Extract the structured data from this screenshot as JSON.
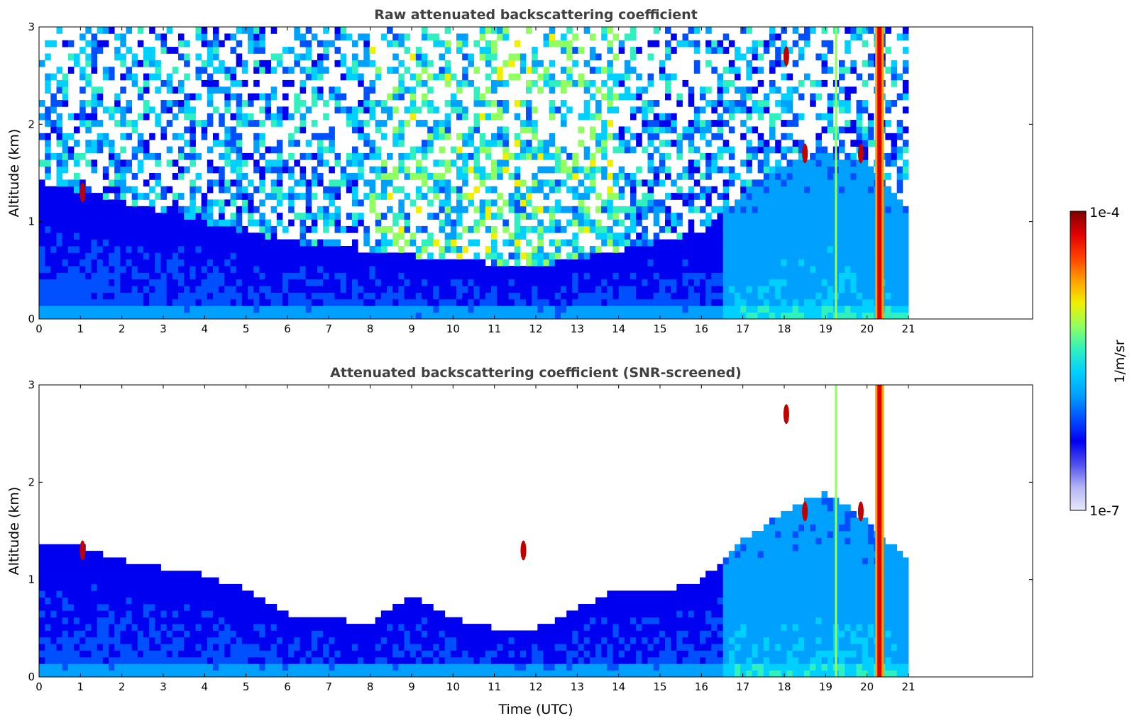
{
  "chart_data": [
    {
      "type": "heatmap",
      "title": "Raw attenuated backscattering coefficient",
      "xlabel": "",
      "ylabel": "Altitude (km)",
      "xlim": [
        0,
        24
      ],
      "ylim": [
        0,
        3
      ],
      "xticks": [
        "0",
        "1",
        "2",
        "3",
        "4",
        "5",
        "6",
        "7",
        "8",
        "9",
        "10",
        "11",
        "12",
        "13",
        "14",
        "15",
        "16",
        "17",
        "18",
        "19",
        "20",
        "21"
      ],
      "yticks": [
        "0",
        "1",
        "2",
        "3"
      ],
      "data_end_hour": 21,
      "features": [
        {
          "name": "boundary layer",
          "kind": "layer",
          "top_km": [
            [
              0,
              1.4
            ],
            [
              2,
              1.2
            ],
            [
              4,
              1.0
            ],
            [
              6,
              0.8
            ],
            [
              8,
              0.7
            ],
            [
              10,
              0.6
            ],
            [
              12,
              0.55
            ],
            [
              14,
              0.7
            ],
            [
              16,
              0.9
            ],
            [
              17,
              1.3
            ],
            [
              18,
              1.6
            ],
            [
              19,
              1.7
            ],
            [
              20,
              1.6
            ],
            [
              21,
              1.1
            ]
          ]
        },
        {
          "name": "cloud",
          "kind": "spot",
          "x_hour": 1.05,
          "alt_km": 1.3
        },
        {
          "name": "cloud",
          "kind": "spot",
          "x_hour": 18.05,
          "alt_km": 2.7
        },
        {
          "name": "cloud",
          "kind": "spot",
          "x_hour": 18.5,
          "alt_km": 1.7
        },
        {
          "name": "cloud",
          "kind": "spot",
          "x_hour": 19.85,
          "alt_km": 1.7
        },
        {
          "name": "precipitation",
          "kind": "column",
          "x_hour": 19.25
        },
        {
          "name": "precipitation",
          "kind": "column",
          "x_hour": 20.3
        }
      ]
    },
    {
      "type": "heatmap",
      "title": "Attenuated backscattering coefficient (SNR-screened)",
      "xlabel": "Time (UTC)",
      "ylabel": "Altitude (km)",
      "xlim": [
        0,
        24
      ],
      "ylim": [
        0,
        3
      ],
      "xticks": [
        "0",
        "1",
        "2",
        "3",
        "4",
        "5",
        "6",
        "7",
        "8",
        "9",
        "10",
        "11",
        "12",
        "13",
        "14",
        "15",
        "16",
        "17",
        "18",
        "19",
        "20",
        "21"
      ],
      "yticks": [
        "0",
        "1",
        "2",
        "3"
      ],
      "data_end_hour": 21,
      "features": [
        {
          "name": "boundary layer",
          "kind": "layer",
          "top_km": [
            [
              0,
              1.4
            ],
            [
              1,
              1.35
            ],
            [
              2,
              1.2
            ],
            [
              4,
              1.05
            ],
            [
              5,
              0.9
            ],
            [
              6,
              0.65
            ],
            [
              7,
              0.6
            ],
            [
              8,
              0.55
            ],
            [
              9,
              0.85
            ],
            [
              10,
              0.6
            ],
            [
              11,
              0.5
            ],
            [
              12,
              0.5
            ],
            [
              13,
              0.7
            ],
            [
              14,
              0.9
            ],
            [
              15,
              0.85
            ],
            [
              16,
              1.0
            ],
            [
              17,
              1.4
            ],
            [
              18,
              1.7
            ],
            [
              19,
              1.9
            ],
            [
              20,
              1.6
            ],
            [
              21,
              1.2
            ]
          ]
        },
        {
          "name": "cloud",
          "kind": "spot",
          "x_hour": 1.05,
          "alt_km": 1.3
        },
        {
          "name": "cloud",
          "kind": "spot",
          "x_hour": 11.7,
          "alt_km": 1.3
        },
        {
          "name": "cloud",
          "kind": "spot",
          "x_hour": 18.05,
          "alt_km": 2.7
        },
        {
          "name": "cloud",
          "kind": "spot",
          "x_hour": 18.5,
          "alt_km": 1.7
        },
        {
          "name": "cloud",
          "kind": "spot",
          "x_hour": 19.85,
          "alt_km": 1.7
        },
        {
          "name": "precipitation",
          "kind": "column",
          "x_hour": 19.25
        },
        {
          "name": "precipitation",
          "kind": "column",
          "x_hour": 20.3
        }
      ]
    }
  ],
  "colorbar": {
    "min_label": "1e-7",
    "max_label": "1e-4",
    "label": "1/m/sr",
    "scale": "log",
    "colors": [
      "#e8e8fa",
      "#b4b4f5",
      "#5050ee",
      "#0000f0",
      "#0050ff",
      "#00a0ff",
      "#00d0ff",
      "#30f0c0",
      "#90ff60",
      "#f0f000",
      "#ffa000",
      "#ff4000",
      "#e00000",
      "#800000"
    ]
  }
}
